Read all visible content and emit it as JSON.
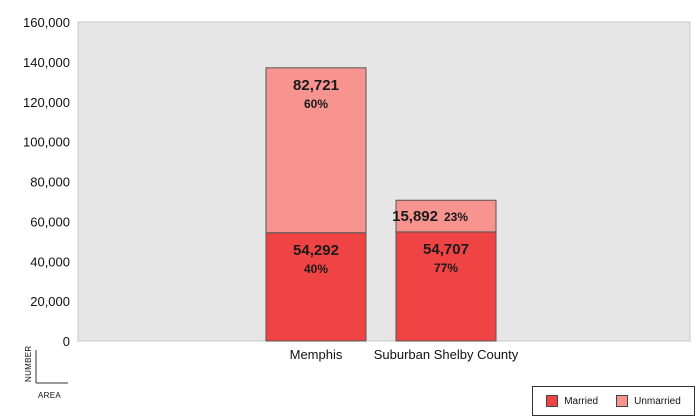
{
  "chart_data": {
    "type": "bar",
    "stacked": true,
    "categories": [
      "Memphis",
      "Suburban Shelby County"
    ],
    "series": [
      {
        "name": "Married",
        "values": [
          54292,
          54707
        ],
        "percent_labels": [
          "40%",
          "77%"
        ],
        "value_labels": [
          "54,292",
          "54,707"
        ],
        "color": "#f04444"
      },
      {
        "name": "Unmarried",
        "values": [
          82721,
          15892
        ],
        "percent_labels": [
          "60%",
          "23%"
        ],
        "value_labels": [
          "82,721",
          "15,892"
        ],
        "color": "#f79490"
      }
    ],
    "ylim": [
      0,
      160000
    ],
    "yticks": [
      0,
      20000,
      40000,
      60000,
      80000,
      100000,
      120000,
      140000,
      160000
    ],
    "ytick_labels": [
      "0",
      "20,000",
      "40,000",
      "60,000",
      "80,000",
      "100,000",
      "120,000",
      "140,000",
      "160,000"
    ],
    "ylabel": "NUMBER",
    "xlabel": "AREA",
    "title": "",
    "grid": false,
    "legend": "bottom-right",
    "plot_background": "#e6e6e6"
  }
}
